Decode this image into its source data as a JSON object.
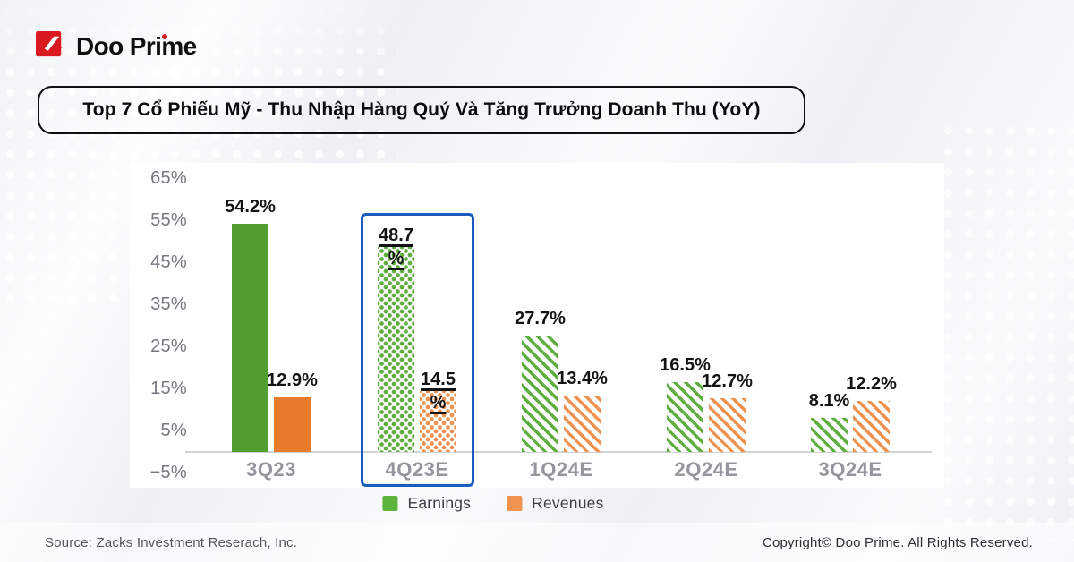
{
  "brand": {
    "name": "Doo Prime"
  },
  "title": "Top 7 Cổ Phiếu Mỹ - Thu Nhập Hàng Quý Và Tăng Trưởng Doanh Thu (YoY)",
  "footer": {
    "source": "Source: Zacks Investment Reserach, Inc.",
    "copyright": "Copyright© Doo Prime. All Rights Reserved."
  },
  "legend": [
    {
      "label": "Earnings",
      "color": "#5cb43c"
    },
    {
      "label": "Revenues",
      "color": "#f0934e"
    }
  ],
  "chart_data": {
    "type": "bar",
    "title": "Top 7 Cổ Phiếu Mỹ - Thu Nhập Hàng Quý Và Tăng Trưởng Doanh Thu (YoY)",
    "categories": [
      "3Q23",
      "4Q23E",
      "1Q24E",
      "2Q24E",
      "3Q24E"
    ],
    "series": [
      {
        "name": "Earnings",
        "color_solid": "#529f30",
        "color_pattern": "#5fae40",
        "values": [
          54.2,
          48.7,
          27.7,
          16.5,
          8.1
        ]
      },
      {
        "name": "Revenues",
        "color_solid": "#e87a2c",
        "color_pattern": "#ef9250",
        "values": [
          12.9,
          14.5,
          13.4,
          12.7,
          12.2
        ]
      }
    ],
    "value_labels": [
      [
        "54.2%",
        "48.7%",
        "27.7%",
        "16.5%",
        "8.1%"
      ],
      [
        "12.9%",
        "14.5%",
        "13.4%",
        "12.7%",
        "12.2%"
      ]
    ],
    "bar_styles": [
      "solid",
      "dots",
      "hatch",
      "hatch",
      "hatch"
    ],
    "highlight_category": "4Q23E",
    "highlight_color": "#1b5abf",
    "y_ticks": [
      "65%",
      "55%",
      "45%",
      "35%",
      "25%",
      "15%",
      "5%",
      "−5%"
    ],
    "y_tick_values": [
      65,
      55,
      45,
      35,
      25,
      15,
      5,
      -5
    ],
    "ylim": [
      -5,
      65
    ],
    "grid": false,
    "legend_position": "bottom"
  }
}
